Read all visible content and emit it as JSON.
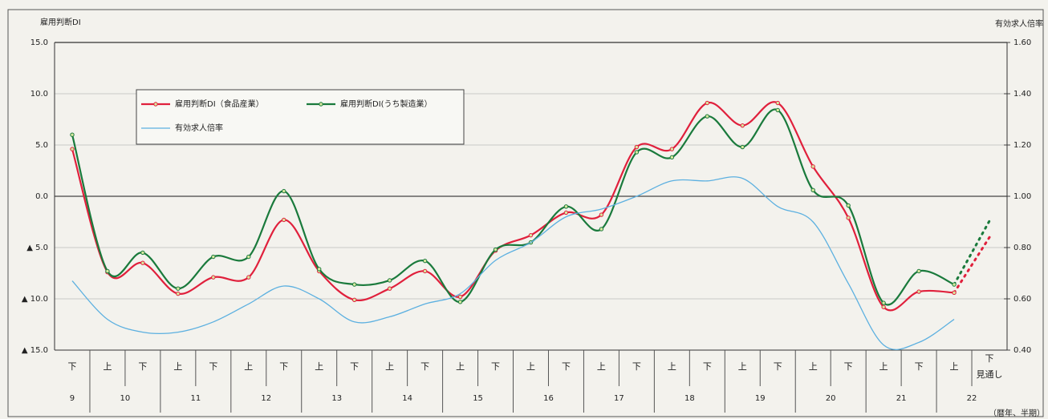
{
  "chart_data": {
    "type": "line",
    "y_axis_label": "雇用判断DI",
    "y2_axis_label": "有効求人倍率",
    "x_axis_note": "（暦年、半期）",
    "categories": [
      "下",
      "上",
      "下",
      "上",
      "下",
      "上",
      "下",
      "上",
      "下",
      "上",
      "下",
      "上",
      "下",
      "上",
      "下",
      "上",
      "下",
      "上",
      "下",
      "上",
      "下",
      "上",
      "下",
      "上",
      "下",
      "上",
      "下"
    ],
    "year_labels": [
      "9",
      "10",
      null,
      "11",
      null,
      "12",
      null,
      "13",
      null,
      "14",
      null,
      "15",
      null,
      "16",
      null,
      "17",
      null,
      "18",
      null,
      "19",
      null,
      "20",
      null,
      "21",
      null,
      "22",
      null
    ],
    "forecast_label": "見通し",
    "last_segment_style": "dotted",
    "ylim": [
      -15,
      15
    ],
    "yticks": [
      {
        "value": 15,
        "label": "15.0"
      },
      {
        "value": 10,
        "label": "10.0"
      },
      {
        "value": 5,
        "label": "5.0"
      },
      {
        "value": 0,
        "label": "0.0"
      },
      {
        "value": -5,
        "label": "▲ 5.0"
      },
      {
        "value": -10,
        "label": "▲ 10.0"
      },
      {
        "value": -15,
        "label": "▲ 15.0"
      }
    ],
    "y2lim": [
      0.4,
      1.6
    ],
    "y2ticks": [
      {
        "value": 1.6,
        "label": "1.60"
      },
      {
        "value": 1.4,
        "label": "1.40"
      },
      {
        "value": 1.2,
        "label": "1.20"
      },
      {
        "value": 1.0,
        "label": "1.00"
      },
      {
        "value": 0.8,
        "label": "0.80"
      },
      {
        "value": 0.6,
        "label": "0.60"
      },
      {
        "value": 0.4,
        "label": "0.40"
      }
    ],
    "grid": true,
    "legend": "upper left",
    "series": [
      {
        "name": "雇用判断DI（食品産業）",
        "color": "#e0203c",
        "marker": true,
        "values": [
          4.6,
          -7.4,
          -6.5,
          -9.5,
          -7.9,
          -7.9,
          -2.3,
          -7.3,
          -10.1,
          -9.0,
          -7.3,
          -9.8,
          -5.3,
          -3.8,
          -1.6,
          -1.8,
          4.8,
          4.6,
          9.1,
          6.9,
          9.1,
          2.9,
          -2.1,
          -10.8,
          -9.3,
          -9.4,
          -4.0
        ]
      },
      {
        "name": "雇用判断DI(うち製造業）",
        "color": "#1a7a3c",
        "marker": true,
        "values": [
          6.0,
          -7.3,
          -5.5,
          -9.0,
          -5.9,
          -5.9,
          0.5,
          -7.1,
          -8.6,
          -8.2,
          -6.3,
          -10.3,
          -5.2,
          -4.5,
          -1.0,
          -3.2,
          4.3,
          3.8,
          7.8,
          4.8,
          8.4,
          0.6,
          -0.9,
          -10.4,
          -7.3,
          -8.6,
          -2.4
        ]
      },
      {
        "name": "有効求人倍率",
        "color": "#5cb0e0",
        "marker": false,
        "axis": "y2",
        "values": [
          0.67,
          0.52,
          0.47,
          0.47,
          0.51,
          0.58,
          0.65,
          0.6,
          0.51,
          0.53,
          0.58,
          0.62,
          0.75,
          0.82,
          0.92,
          0.95,
          1.0,
          1.06,
          1.06,
          1.07,
          0.96,
          0.9,
          0.66,
          0.42,
          0.43,
          0.52,
          null
        ]
      }
    ]
  }
}
